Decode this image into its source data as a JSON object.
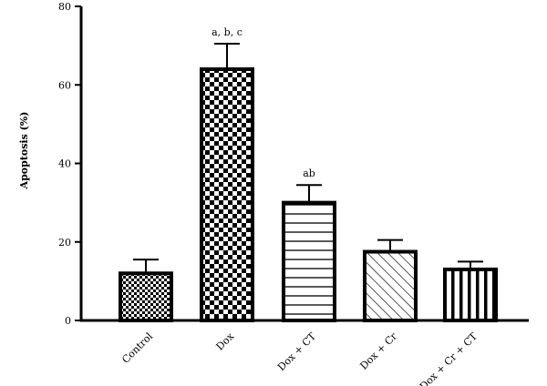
{
  "chart_data": {
    "type": "bar",
    "title": "",
    "xlabel": "",
    "ylabel": "Apoptosis (%)",
    "ylim": [
      0,
      80
    ],
    "yticks": [
      0,
      20,
      40,
      60,
      80
    ],
    "grid": false,
    "categories": [
      "Control",
      "Dox",
      "Dox + CT",
      "Dox + Cr",
      "Dox + Cr + CT"
    ],
    "values": [
      12,
      64,
      30,
      17.5,
      13
    ],
    "error_upper": [
      15.5,
      70.5,
      34.5,
      20.5,
      15
    ],
    "annotations": [
      "",
      "a, b, c",
      "ab",
      "",
      ""
    ],
    "patterns": [
      "checker-fine",
      "checker-large",
      "horizontal-lines",
      "diagonal-lines",
      "vertical-lines"
    ],
    "colors": {
      "fill": "#ffffff",
      "ink": "#000000"
    }
  }
}
